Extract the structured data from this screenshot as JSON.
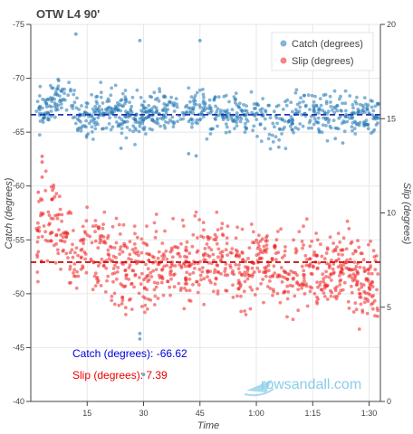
{
  "chart_data": {
    "type": "scatter",
    "title": "OTW L4 90'",
    "xlabel": "Time",
    "ylabel_left": "Catch (degrees)",
    "ylabel_right": "Slip (degrees)",
    "x_range_seconds": [
      0,
      93
    ],
    "x_ticks": [
      {
        "value": 15,
        "label": "15"
      },
      {
        "value": 30,
        "label": "30"
      },
      {
        "value": 45,
        "label": "45"
      },
      {
        "value": 60,
        "label": "1:00"
      },
      {
        "value": 75,
        "label": "1:15"
      },
      {
        "value": 90,
        "label": "1:30"
      }
    ],
    "y_left_range": [
      -40,
      -75
    ],
    "y_left_ticks": [
      -75,
      -70,
      -65,
      -60,
      -55,
      -50,
      -45,
      -40
    ],
    "y_right_range": [
      0,
      20
    ],
    "y_right_ticks": [
      0,
      5,
      10,
      15,
      20
    ],
    "grid": true,
    "legend_placement": "top-right",
    "series": [
      {
        "name": "Catch (degrees)",
        "color": "#1f77b4",
        "axis": "left",
        "mean": -66.62,
        "profile": [
          [
            2,
            -66.8
          ],
          [
            5,
            -67.8
          ],
          [
            8,
            -68.6
          ],
          [
            11,
            -67.5
          ],
          [
            13,
            -65.9
          ],
          [
            15,
            -66.4
          ],
          [
            18,
            -67.1
          ],
          [
            21,
            -67.3
          ],
          [
            24,
            -66.4
          ],
          [
            27,
            -66.8
          ],
          [
            30,
            -66.1
          ],
          [
            33,
            -66.9
          ],
          [
            36,
            -66.9
          ],
          [
            39,
            -66.1
          ],
          [
            42,
            -67.4
          ],
          [
            45,
            -67.6
          ],
          [
            48,
            -66.7
          ],
          [
            51,
            -66.3
          ],
          [
            54,
            -66.8
          ],
          [
            57,
            -66.5
          ],
          [
            60,
            -66.6
          ],
          [
            63,
            -66.3
          ],
          [
            66,
            -65.7
          ],
          [
            69,
            -66.4
          ],
          [
            72,
            -66.9
          ],
          [
            75,
            -66.8
          ],
          [
            78,
            -66.3
          ],
          [
            81,
            -67.1
          ],
          [
            84,
            -66.4
          ],
          [
            87,
            -66.6
          ],
          [
            90,
            -66.5
          ],
          [
            93,
            -66.8
          ]
        ],
        "outliers": [
          [
            12,
            -74.1
          ],
          [
            29,
            -73.5
          ],
          [
            45,
            -73.5
          ],
          [
            29,
            -46.3
          ],
          [
            29,
            -45.8
          ],
          [
            30,
            -42.5
          ],
          [
            19,
            -65.3
          ],
          [
            24,
            -63.5
          ],
          [
            42,
            -63.0
          ],
          [
            44,
            -62.8
          ],
          [
            66,
            -63.6
          ],
          [
            81,
            -64.4
          ],
          [
            83,
            -64.0
          ]
        ]
      },
      {
        "name": "Slip (degrees)",
        "color": "#ee2222",
        "axis": "right",
        "mean": 7.39,
        "profile": [
          [
            2,
            8.6
          ],
          [
            4,
            9.6
          ],
          [
            6,
            10.0
          ],
          [
            8,
            9.2
          ],
          [
            10,
            7.9
          ],
          [
            12,
            7.5
          ],
          [
            15,
            8.1
          ],
          [
            17,
            7.4
          ],
          [
            19,
            8.0
          ],
          [
            21,
            7.3
          ],
          [
            24,
            7.0
          ],
          [
            27,
            7.1
          ],
          [
            30,
            6.8
          ],
          [
            33,
            7.1
          ],
          [
            36,
            7.3
          ],
          [
            39,
            6.9
          ],
          [
            42,
            7.1
          ],
          [
            45,
            7.8
          ],
          [
            48,
            7.3
          ],
          [
            51,
            7.6
          ],
          [
            54,
            7.1
          ],
          [
            57,
            6.9
          ],
          [
            60,
            7.5
          ],
          [
            63,
            7.2
          ],
          [
            66,
            7.1
          ],
          [
            69,
            6.9
          ],
          [
            72,
            7.3
          ],
          [
            75,
            7.1
          ],
          [
            78,
            7.0
          ],
          [
            81,
            7.2
          ],
          [
            84,
            7.6
          ],
          [
            87,
            6.6
          ],
          [
            90,
            6.1
          ],
          [
            93,
            5.9
          ]
        ],
        "outliers": [
          [
            3,
            13.0
          ],
          [
            3,
            12.7
          ],
          [
            3,
            11.9
          ],
          [
            2,
            11.1
          ]
        ]
      }
    ],
    "mean_lines": [
      {
        "series": "Catch (degrees)",
        "value": -66.62,
        "axis": "left",
        "color": "#2233aa",
        "style": "dashed"
      },
      {
        "series": "Slip (degrees)",
        "value": 7.39,
        "axis": "right",
        "color": "#cc1111",
        "style": "dashed"
      }
    ],
    "annotations": [
      {
        "text": "Catch (degrees): -66.62",
        "color": "#0000dd"
      },
      {
        "text": "Slip (degrees): 7.39",
        "color": "#ee0000"
      }
    ]
  },
  "watermark": {
    "text": "rowsandall.com",
    "icon": "boat-icon"
  }
}
